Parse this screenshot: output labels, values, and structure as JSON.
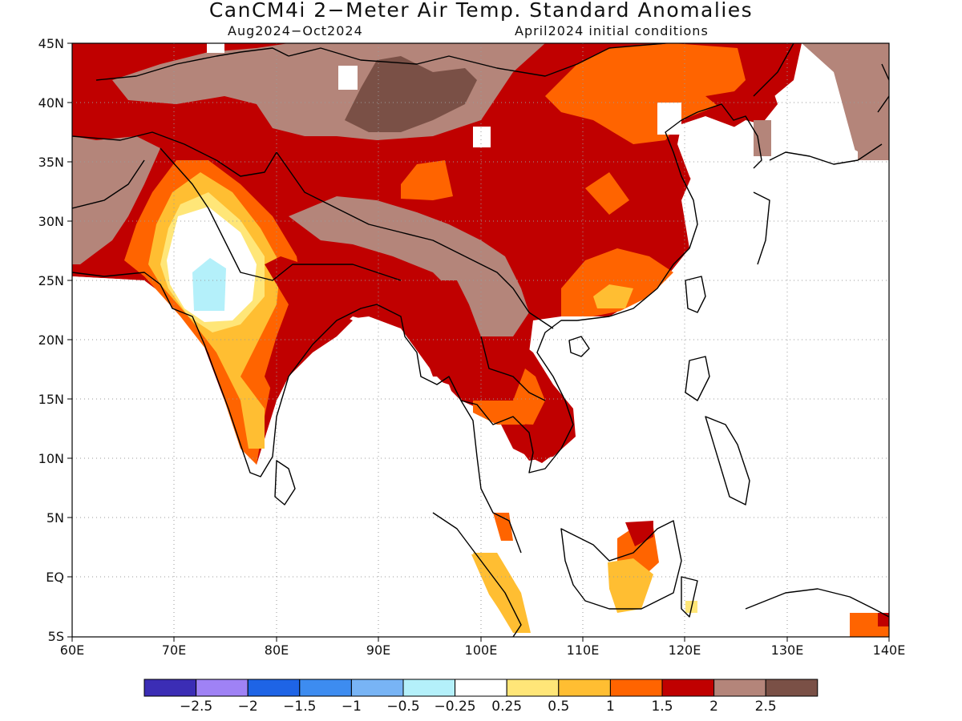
{
  "title": "CanCM4i 2−Meter Air Temp. Standard Anomalies",
  "subtitle_left": "Aug2024−Oct2024",
  "subtitle_right": "April2024 initial conditions",
  "map": {
    "lat_labels": [
      "45N",
      "40N",
      "35N",
      "30N",
      "25N",
      "20N",
      "15N",
      "10N",
      "5N",
      "EQ",
      "5S"
    ],
    "lon_labels": [
      "60E",
      "70E",
      "80E",
      "90E",
      "100E",
      "110E",
      "120E",
      "130E",
      "140E"
    ],
    "extent": {
      "lon": [
        60,
        140
      ],
      "lat": [
        -5,
        45
      ]
    },
    "grid": "dotted"
  },
  "colorbar": {
    "colors": [
      "#3b2db5",
      "#9f82f5",
      "#1e64e6",
      "#3d8cf0",
      "#78b4f5",
      "#b4f0fa",
      "#ffffff",
      "#ffe678",
      "#ffbe32",
      "#ff6400",
      "#c00000",
      "#b4857a",
      "#7a5046"
    ],
    "tick_labels": [
      "−2.5",
      "−2",
      "−1.5",
      "−1",
      "−0.5",
      "−0.25",
      "0.25",
      "0.5",
      "1",
      "1.5",
      "2",
      "2.5"
    ]
  }
}
